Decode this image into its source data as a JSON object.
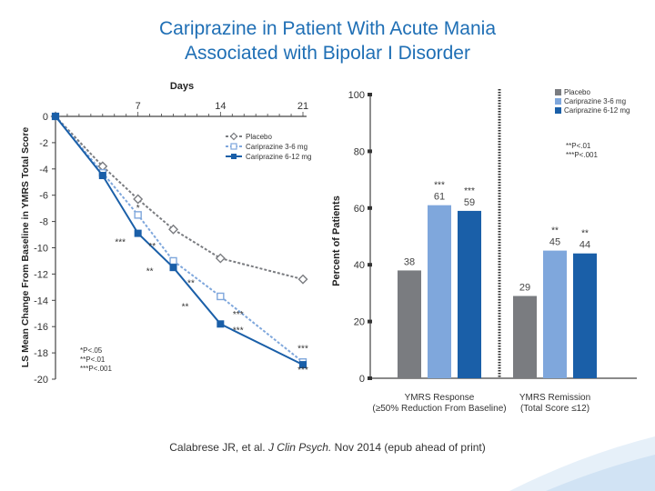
{
  "slide": {
    "title_line1": "Cariprazine in Patient With Acute Mania",
    "title_line2": "Associated with Bipolar I Disorder",
    "citation_prefix": "Calabrese JR, et al. ",
    "citation_journal": "J Clin Psych.",
    "citation_suffix": " Nov 2014 (epub ahead of print)"
  },
  "colors": {
    "placebo": "#7a7c80",
    "carip_3_6": "#7fa7dc",
    "carip_6_12": "#1a5fa8",
    "title": "#1f6fb5"
  },
  "chart_data": [
    {
      "type": "line",
      "title": "Days",
      "xlabel": "Days",
      "ylabel": "LS Mean Change From Baseline in YMRS Total Score",
      "xlim": [
        0,
        21
      ],
      "ylim": [
        -20,
        0
      ],
      "x_ticks": [
        "7",
        "14",
        "21"
      ],
      "y_ticks": [
        "0",
        "-2",
        "-4",
        "-6",
        "-8",
        "-10",
        "-12",
        "-14",
        "-16",
        "-18",
        "-20"
      ],
      "legend_position": "top-right",
      "series": [
        {
          "name": "Placebo",
          "marker": "diamond",
          "x": [
            0,
            4,
            7,
            10,
            14,
            21
          ],
          "y": [
            0,
            -3.8,
            -6.3,
            -8.6,
            -10.8,
            -12.4
          ]
        },
        {
          "name": "Cariprazine 3-6 mg",
          "marker": "square-open",
          "x": [
            0,
            4,
            7,
            10,
            14,
            21
          ],
          "y": [
            0,
            -4.3,
            -7.5,
            -11.0,
            -13.7,
            -18.7
          ]
        },
        {
          "name": "Cariprazine 6-12 mg",
          "marker": "square",
          "x": [
            0,
            4,
            7,
            10,
            14,
            21
          ],
          "y": [
            0,
            -4.5,
            -8.9,
            -11.5,
            -15.8,
            -18.9
          ]
        }
      ],
      "annotations": [
        {
          "x": 7,
          "y": -7.2,
          "text": "*"
        },
        {
          "x": 5.5,
          "y": -9.8,
          "text": "***"
        },
        {
          "x": 8.2,
          "y": -10.1,
          "text": "**"
        },
        {
          "x": 8.0,
          "y": -12.0,
          "text": "**"
        },
        {
          "x": 11.5,
          "y": -12.9,
          "text": "**"
        },
        {
          "x": 11.0,
          "y": -14.7,
          "text": "**"
        },
        {
          "x": 15.5,
          "y": -15.3,
          "text": "***"
        },
        {
          "x": 15.5,
          "y": -16.5,
          "text": "***"
        },
        {
          "x": 21.0,
          "y": -17.9,
          "text": "***"
        },
        {
          "x": 21.0,
          "y": -19.5,
          "text": "***"
        }
      ],
      "footnotes": [
        "*P<.05",
        "**P<.01",
        "***P<.001"
      ]
    },
    {
      "type": "bar",
      "ylabel": "Percent of Patients",
      "ylim": [
        0,
        100
      ],
      "y_ticks": [
        "0",
        "20",
        "40",
        "60",
        "80",
        "100"
      ],
      "categories": [
        "YMRS Response (≥50% Reduction From Baseline)",
        "YMRS Remission (Total Score ≤12)"
      ],
      "category_lines": [
        [
          "YMRS Response",
          "(≥50% Reduction From Baseline)"
        ],
        [
          "YMRS Remission",
          "(Total Score ≤12)"
        ]
      ],
      "legend_position": "top-right",
      "series": [
        {
          "name": "Placebo",
          "values": [
            38,
            29
          ],
          "labels": [
            "38",
            "29"
          ],
          "sig": [
            "",
            ""
          ]
        },
        {
          "name": "Cariprazine 3-6 mg",
          "values": [
            61,
            45
          ],
          "labels": [
            "61",
            "45"
          ],
          "sig": [
            "***",
            "**"
          ]
        },
        {
          "name": "Cariprazine 6-12 mg",
          "values": [
            59,
            44
          ],
          "labels": [
            "59",
            "44"
          ],
          "sig": [
            "***",
            "**"
          ]
        }
      ],
      "footnotes": [
        "**P<.01",
        "***P<.001"
      ]
    }
  ]
}
